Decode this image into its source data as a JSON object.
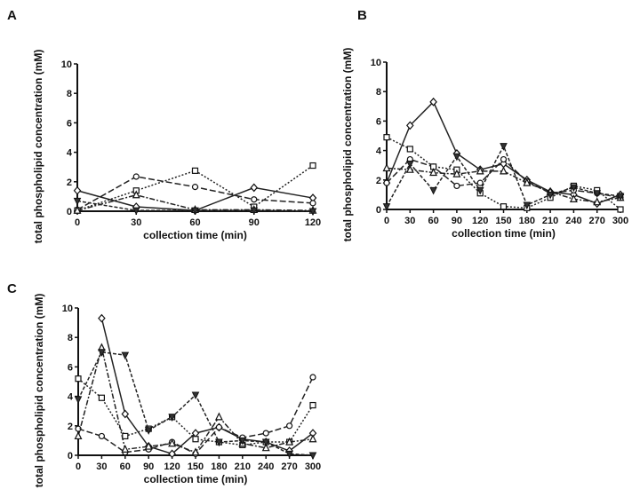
{
  "chart_data": [
    {
      "panel": "A",
      "type": "line",
      "xlabel": "collection time (min)",
      "ylabel": "total phospholipid concentration (mM)",
      "x": [
        0,
        30,
        60,
        90,
        120
      ],
      "xticks": [
        "0",
        "30",
        "60",
        "90",
        "120"
      ],
      "ylim": [
        0,
        10
      ],
      "yticks": [
        "0",
        "2",
        "4",
        "6",
        "8",
        "10"
      ],
      "series": [
        {
          "marker": "diamond",
          "dash": "solid",
          "values": [
            1.4,
            0.3,
            0.05,
            1.6,
            0.9
          ]
        },
        {
          "marker": "circle",
          "dash": "long-dash",
          "values": [
            0.1,
            2.35,
            1.65,
            0.8,
            0.55
          ]
        },
        {
          "marker": "square",
          "dash": "dotted",
          "values": [
            0.05,
            1.4,
            2.75,
            0.3,
            3.1
          ]
        },
        {
          "marker": "triangle-up",
          "dash": "dash-dot",
          "values": [
            0.05,
            1.1,
            0.1,
            0.1,
            0.05
          ]
        },
        {
          "marker": "triangle-down",
          "dash": "short-dash",
          "values": [
            0.7,
            0.05,
            0.05,
            0.05,
            0.0
          ]
        }
      ]
    },
    {
      "panel": "B",
      "type": "line",
      "xlabel": "collection time (min)",
      "ylabel": "total phospholipid concentration (mM)",
      "x": [
        0,
        30,
        60,
        90,
        120,
        150,
        180,
        210,
        240,
        270,
        300
      ],
      "xticks": [
        "0",
        "30",
        "60",
        "90",
        "120",
        "150",
        "180",
        "210",
        "240",
        "270",
        "300"
      ],
      "ylim": [
        0,
        10
      ],
      "yticks": [
        "0",
        "2",
        "4",
        "6",
        "8",
        "10"
      ],
      "series": [
        {
          "marker": "diamond",
          "dash": "solid",
          "values": [
            1.8,
            5.7,
            7.3,
            3.8,
            2.7,
            3.1,
            2.0,
            1.2,
            1.0,
            0.4,
            1.0
          ]
        },
        {
          "marker": "circle",
          "dash": "long-dash",
          "values": [
            1.8,
            3.4,
            2.9,
            1.6,
            1.8,
            3.4,
            1.9,
            1.1,
            1.3,
            1.1,
            0.8
          ]
        },
        {
          "marker": "square",
          "dash": "dotted",
          "values": [
            4.9,
            4.1,
            2.9,
            2.7,
            1.1,
            0.2,
            0.1,
            0.8,
            1.6,
            1.3,
            0.0
          ]
        },
        {
          "marker": "triangle-up",
          "dash": "dash-dot",
          "values": [
            2.8,
            2.7,
            2.5,
            2.4,
            2.6,
            2.6,
            1.8,
            1.2,
            0.7,
            0.5,
            0.8
          ]
        },
        {
          "marker": "triangle-down",
          "dash": "short-dash",
          "values": [
            0.2,
            3.1,
            1.3,
            3.6,
            1.3,
            4.3,
            0.3,
            1.0,
            1.5,
            1.1,
            0.9
          ]
        }
      ]
    },
    {
      "panel": "C",
      "type": "line",
      "xlabel": "collection time (min)",
      "ylabel": "total phospholipid concentration (mM)",
      "x": [
        0,
        30,
        60,
        90,
        120,
        150,
        180,
        210,
        240,
        270,
        300
      ],
      "xticks": [
        "0",
        "30",
        "60",
        "90",
        "120",
        "150",
        "180",
        "210",
        "240",
        "270",
        "300"
      ],
      "ylim": [
        0,
        10
      ],
      "yticks": [
        "0",
        "2",
        "4",
        "6",
        "8",
        "10"
      ],
      "series": [
        {
          "marker": "diamond",
          "dash": "solid",
          "values": [
            null,
            9.3,
            2.8,
            0.6,
            0.1,
            1.5,
            1.9,
            1.1,
            0.9,
            0.3,
            1.5
          ]
        },
        {
          "marker": "circle",
          "dash": "long-dash",
          "values": [
            1.8,
            1.3,
            0.2,
            0.4,
            0.9,
            0.1,
            1.9,
            1.2,
            1.5,
            2.0,
            5.3
          ]
        },
        {
          "marker": "square",
          "dash": "dotted",
          "values": [
            5.2,
            3.9,
            1.3,
            1.8,
            2.6,
            1.1,
            0.9,
            0.7,
            0.9,
            0.9,
            3.4
          ]
        },
        {
          "marker": "triangle-up",
          "dash": "dash-dot",
          "values": [
            1.3,
            7.3,
            0.4,
            0.6,
            0.8,
            0.2,
            2.6,
            0.8,
            0.5,
            0.9,
            1.1
          ]
        },
        {
          "marker": "triangle-down",
          "dash": "short-dash",
          "values": [
            3.8,
            7.0,
            6.8,
            1.7,
            2.6,
            4.1,
            0.9,
            1.0,
            0.9,
            0.1,
            0.0
          ]
        }
      ]
    }
  ]
}
